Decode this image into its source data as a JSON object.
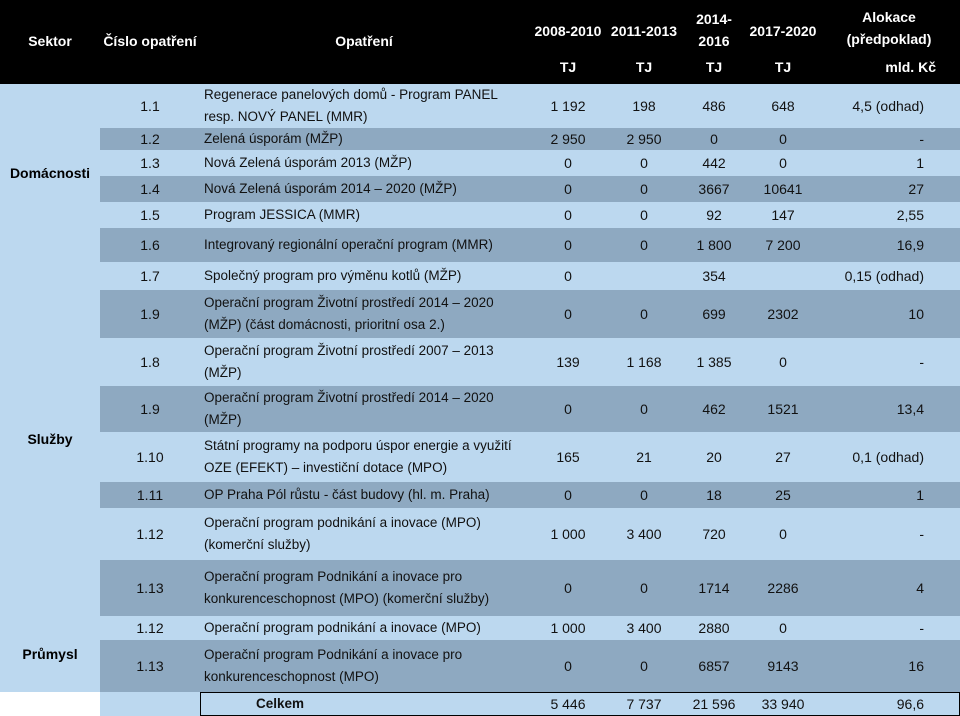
{
  "header": {
    "sektor": "Sektor",
    "cislo": "Číslo opatření",
    "opatreni": "Opatření",
    "p1": "2008-2010",
    "p2": "2011-2013",
    "p3a": "2014-",
    "p3b": "2016",
    "p4": "2017-2020",
    "alokace": "Alokace (předpoklad)",
    "u1": "TJ",
    "u2": "TJ",
    "u3": "TJ",
    "u4": "TJ",
    "u5": "mld. Kč"
  },
  "sectors": {
    "domacnosti": "Domácnosti",
    "sluzby": "Služby",
    "prumysl": "Průmysl"
  },
  "rows": [
    {
      "num": "1.1",
      "name": "Regenerace panelových domů - Program PANEL resp. NOVÝ PANEL (MMR)",
      "v1": "1 192",
      "v2": "198",
      "v3": "486",
      "v4": "648",
      "a": "4,5 (odhad)"
    },
    {
      "num": "1.2",
      "name": "Zelená úsporám (MŽP)",
      "v1": "2 950",
      "v2": "2 950",
      "v3": "0",
      "v4": "0",
      "a": "-"
    },
    {
      "num": "1.3",
      "name": "Nová Zelená úsporám 2013 (MŽP)",
      "v1": "0",
      "v2": "0",
      "v3": "442",
      "v4": "0",
      "a": "1"
    },
    {
      "num": "1.4",
      "name": "Nová Zelená úsporám 2014 – 2020 (MŽP)",
      "v1": "0",
      "v2": "0",
      "v3": "3667",
      "v4": "10641",
      "a": "27"
    },
    {
      "num": "1.5",
      "name": "Program JESSICA (MMR)",
      "v1": "0",
      "v2": "0",
      "v3": "92",
      "v4": "147",
      "a": "2,55"
    },
    {
      "num": "1.6",
      "name": "Integrovaný regionální operační program (MMR)",
      "v1": "0",
      "v2": "0",
      "v3": "1 800",
      "v4": "7 200",
      "a": "16,9"
    },
    {
      "num": "1.7",
      "name": "Společný program pro výměnu kotlů (MŽP)",
      "v1": "0",
      "v2": "",
      "v3": "354",
      "v4": "",
      "a": "0,15 (odhad)"
    },
    {
      "num": "1.9",
      "name": "Operační program Životní prostředí 2014 – 2020 (MŽP) (část domácnosti, prioritní osa 2.)",
      "v1": "0",
      "v2": "0",
      "v3": "699",
      "v4": "2302",
      "a": "10"
    },
    {
      "num": "1.8",
      "name": "Operační program Životní prostředí 2007 – 2013 (MŽP)",
      "v1": "139",
      "v2": "1 168",
      "v3": "1 385",
      "v4": "0",
      "a": "-"
    },
    {
      "num": "1.9",
      "name": "Operační program Životní prostředí 2014 – 2020 (MŽP)",
      "v1": "0",
      "v2": "0",
      "v3": "462",
      "v4": "1521",
      "a": "13,4"
    },
    {
      "num": "1.10",
      "name": "Státní programy na podporu úspor energie a využití OZE (EFEKT) – investiční dotace (MPO)",
      "v1": "165",
      "v2": "21",
      "v3": "20",
      "v4": "27",
      "a": "0,1 (odhad)"
    },
    {
      "num": "1.11",
      "name": "OP Praha Pól růstu - část budovy (hl. m. Praha)",
      "v1": "0",
      "v2": "0",
      "v3": "18",
      "v4": "25",
      "a": "1"
    },
    {
      "num": "1.12",
      "name": "Operační program podnikání a inovace (MPO) (komerční služby)",
      "v1": "1 000",
      "v2": "3 400",
      "v3": "720",
      "v4": "0",
      "a": "-"
    },
    {
      "num": "1.13",
      "name": "Operační program Podnikání a inovace pro konkurenceschopnost (MPO) (komerční služby)",
      "v1": "0",
      "v2": "0",
      "v3": "1714",
      "v4": "2286",
      "a": "4"
    },
    {
      "num": "1.12",
      "name": "Operační program podnikání a inovace (MPO)",
      "v1": "1 000",
      "v2": "3 400",
      "v3": "2880",
      "v4": "0",
      "a": "-"
    },
    {
      "num": "1.13",
      "name": "Operační program Podnikání a inovace pro konkurenceschopnost (MPO)",
      "v1": "0",
      "v2": "0",
      "v3": "6857",
      "v4": "9143",
      "a": "16"
    }
  ],
  "total": {
    "label": "Celkem",
    "v1": "5 446",
    "v2": "7 737",
    "v3": "21 596",
    "v4": "33 940",
    "a": "96,6"
  }
}
